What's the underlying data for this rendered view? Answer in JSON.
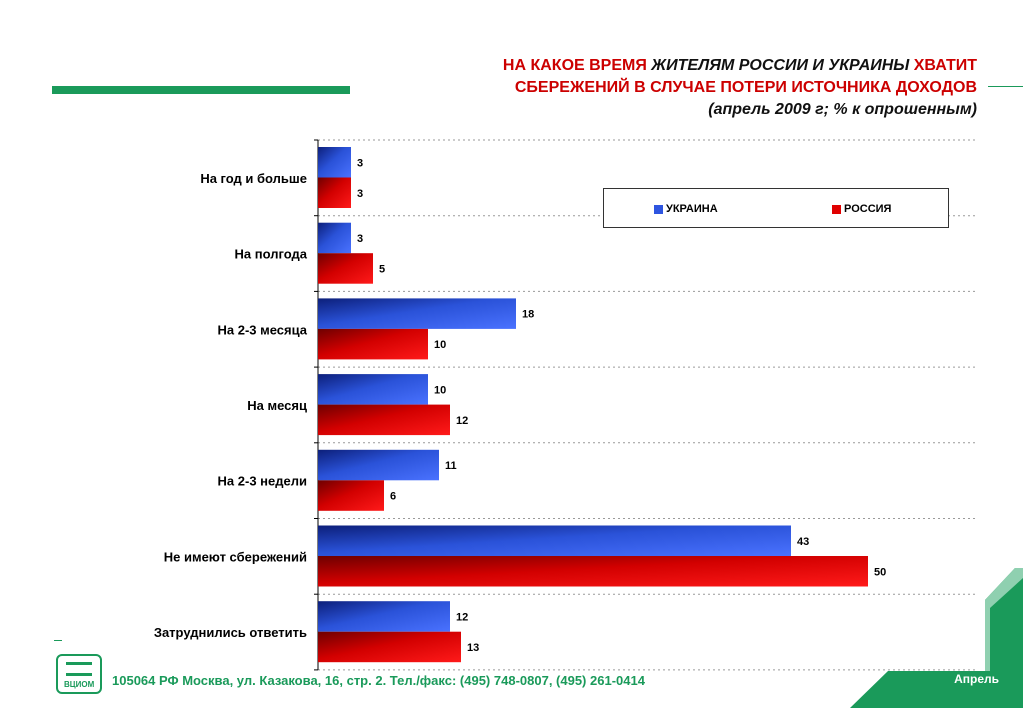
{
  "title": {
    "part1": "НА КАКОЕ ВРЕМЯ ",
    "part2": "ЖИТЕЛЯМ РОССИИ И УКРАИНЫ",
    "part3": " ХВАТИТ",
    "line2": "СБЕРЕЖЕНИЙ В СЛУЧАЕ ПОТЕРИ ИСТОЧНИКА ДОХОДОВ",
    "subtitle": "(апрель 2009 г; % к опрошенным)"
  },
  "legend": {
    "ukraine": "УКРАИНА",
    "russia": "РОССИЯ"
  },
  "footer": {
    "address": "105064 РФ Москва, ул. Казакова, 16, стр. 2.  Тел./факс: (495) 748-0807, (495) 261-0414",
    "logo": "ВЦИОМ",
    "month": "Апрель"
  },
  "colors": {
    "ukraine": "#2e55e0",
    "russia": "#e00000",
    "accent": "#1a9a5a",
    "title_red": "#cc0000"
  },
  "chart_data": {
    "type": "bar",
    "orientation": "horizontal",
    "categories": [
      "На год и больше",
      "На полгода",
      "На 2-3 месяца",
      "На месяц",
      "На 2-3 недели",
      "Не имеют сбережений",
      "Затруднились ответить"
    ],
    "series": [
      {
        "name": "УКРАИНА",
        "values": [
          3,
          3,
          18,
          10,
          11,
          43,
          12
        ]
      },
      {
        "name": "РОССИЯ",
        "values": [
          3,
          5,
          10,
          12,
          6,
          50,
          13
        ]
      }
    ],
    "xlim": [
      0,
      57
    ],
    "grid": true,
    "legend_position": "top-right"
  }
}
